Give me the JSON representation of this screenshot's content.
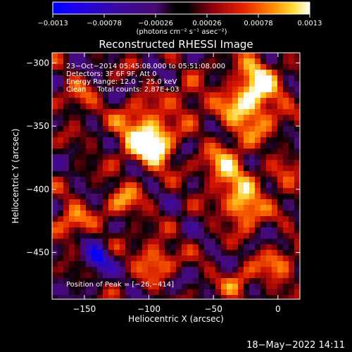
{
  "chart_data": {
    "type": "heatmap",
    "title": "Reconstructed RHESSI Image",
    "xlabel": "Heliocentric X (arcsec)",
    "ylabel": "Heliocentric Y (arcsec)",
    "xlim": [
      -175,
      17
    ],
    "ylim": [
      -487,
      -292
    ],
    "x_ticks": [
      -150,
      -100,
      -50,
      0
    ],
    "x_tick_labels": [
      "−150",
      "−100",
      "−50",
      "0"
    ],
    "y_ticks": [
      -300,
      -350,
      -400,
      -450
    ],
    "y_tick_labels": [
      "−300",
      "−350",
      "−400",
      "−450"
    ],
    "colorbar": {
      "min": -0.0013,
      "max": 0.0013,
      "tick_values": [
        -0.0013,
        -0.00078,
        -0.00026,
        0.00026,
        0.00078,
        0.0013
      ],
      "tick_labels": [
        "−0.0013",
        "−0.00078",
        "−0.00026",
        "0.00026",
        "0.00078",
        "0.0013"
      ],
      "units_label": "(photons cm⁻² s⁻¹ asec⁻²)"
    },
    "annotations": [
      "23−Oct−2014 05:45:08.000 to 05:51:08.000",
      "Detectors: 3F 6F 9F, Att 0",
      "Energy Range: 12.0 − 25.0 keV",
      "Clean     Total counts: 2.87E+03"
    ],
    "peak_text": "Position of Peak = [−26,−414]",
    "sources": [
      {
        "x": -104,
        "y": -355,
        "amp": 1.0,
        "sigma": 14
      },
      {
        "x": -94,
        "y": -370,
        "amp": 0.75,
        "sigma": 9
      },
      {
        "x": -22,
        "y": -335,
        "amp": 0.9,
        "sigma": 16
      },
      {
        "x": -26,
        "y": -414,
        "amp": 1.0,
        "sigma": 10
      },
      {
        "x": -40,
        "y": -385,
        "amp": 0.8,
        "sigma": 12
      },
      {
        "x": -15,
        "y": -310,
        "amp": 0.75,
        "sigma": 10
      },
      {
        "x": -120,
        "y": -410,
        "amp": 0.55,
        "sigma": 10
      },
      {
        "x": -95,
        "y": -455,
        "amp": 0.7,
        "sigma": 10
      },
      {
        "x": 0,
        "y": -460,
        "amp": 0.55,
        "sigma": 10
      },
      {
        "x": -155,
        "y": -330,
        "amp": 0.45,
        "sigma": 9
      },
      {
        "x": -160,
        "y": -425,
        "amp": 0.65,
        "sigma": 9
      },
      {
        "x": -30,
        "y": -475,
        "amp": 0.5,
        "sigma": 9
      },
      {
        "x": 5,
        "y": -395,
        "amp": 0.45,
        "sigma": 9
      },
      {
        "x": -70,
        "y": -330,
        "amp": 0.45,
        "sigma": 9
      },
      {
        "x": -140,
        "y": -455,
        "amp": -0.95,
        "sigma": 7
      }
    ],
    "grid": false
  },
  "footer": {
    "timestamp": "18−May−2022 14:11"
  },
  "colors": {
    "background": "#000000",
    "foreground": "#ffffff"
  }
}
